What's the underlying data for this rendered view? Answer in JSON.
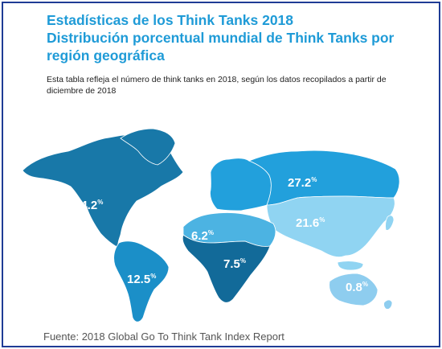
{
  "header": {
    "title_line1": "Estadísticas de los Think Tanks 2018",
    "title_line2": "Distribución porcentual mundial de Think Tanks por",
    "title_line3": "región geográfica",
    "description": "Esta tabla refleja el número de think tanks en 2018, según los datos recopilados a partir de diciembre de 2018"
  },
  "footer": {
    "source": "Fuente: 2018 Global Go To Think Tank Index Report"
  },
  "colors": {
    "frame": "#1f3c95",
    "title": "#1f9bd7",
    "north_america": "#1878a8",
    "south_america": "#1b8fc8",
    "europe": "#22a0dc",
    "asia": "#90d4f2",
    "mena": "#4cb3e2",
    "sub_saharan_africa": "#126a99",
    "oceania": "#8ecdef",
    "label": "#ffffff"
  },
  "chart_data": {
    "type": "map",
    "unit": "%",
    "regions": [
      {
        "region": "north_america",
        "value": 24.2
      },
      {
        "region": "europe",
        "value": 27.2
      },
      {
        "region": "asia",
        "value": 21.6
      },
      {
        "region": "mena",
        "value": 6.2
      },
      {
        "region": "sub_saharan_africa",
        "value": 7.5
      },
      {
        "region": "south_america",
        "value": 12.5
      },
      {
        "region": "oceania",
        "value": 0.8
      }
    ]
  }
}
